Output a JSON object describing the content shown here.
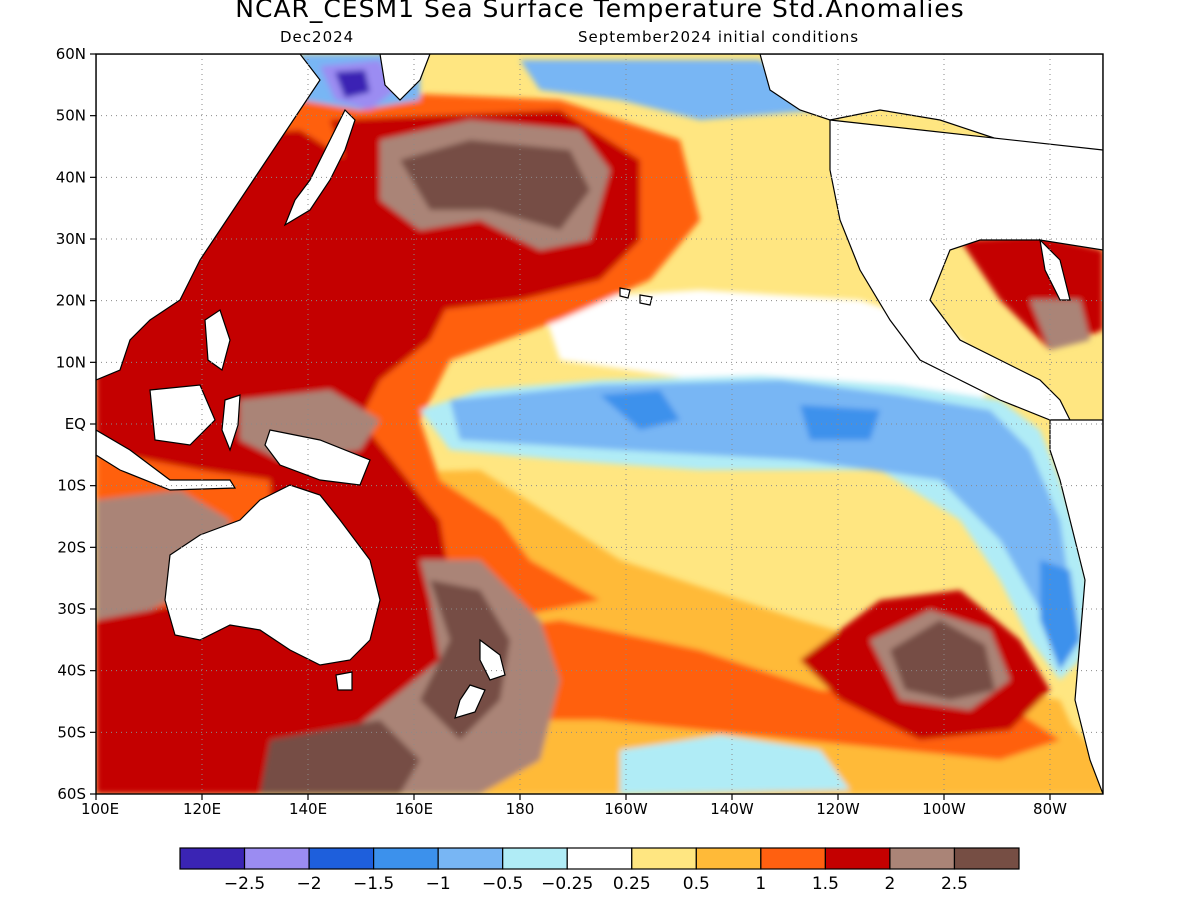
{
  "header": {
    "title": "NCAR_CESM1 Sea Surface Temperature Std.Anomalies",
    "target_month": "Dec2024",
    "init_conditions": "September2024 initial conditions"
  },
  "map": {
    "lon_ticks": [
      "100E",
      "120E",
      "140E",
      "160E",
      "180",
      "160W",
      "140W",
      "120W",
      "100W",
      "80W"
    ],
    "lat_ticks": [
      "60N",
      "50N",
      "40N",
      "30N",
      "20N",
      "10N",
      "EQ",
      "10S",
      "20S",
      "30S",
      "40S",
      "50S",
      "60S"
    ],
    "grid": true,
    "colors": {
      "land": "#ffffff",
      "coast": "#000000"
    }
  },
  "colorbar": {
    "colors": [
      "#3a24b4",
      "#9b8cf2",
      "#1e5fdc",
      "#3c91ec",
      "#78b6f4",
      "#b0ecf6",
      "#ffffff",
      "#ffe681",
      "#ffba38",
      "#ff6010",
      "#c40000",
      "#aa8477",
      "#764e44"
    ],
    "labels": [
      "−2.5",
      "−2",
      "−1.5",
      "−1",
      "−0.5",
      "−0.25",
      "0.25",
      "0.5",
      "1",
      "1.5",
      "2",
      "2.5"
    ]
  },
  "anomaly_regions": [
    {
      "name": "central-north-pacific",
      "level": "2.5"
    },
    {
      "name": "western-pacific",
      "level": "2"
    },
    {
      "name": "equatorial-pacific",
      "level": "-1"
    },
    {
      "name": "kamchatka",
      "level": "-2.5"
    },
    {
      "name": "southeast-pacific",
      "level": "2.5"
    }
  ]
}
